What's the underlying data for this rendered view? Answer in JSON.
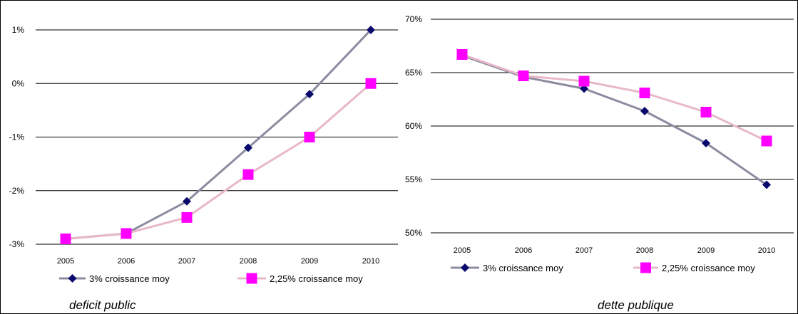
{
  "charts": [
    {
      "type": "line",
      "title": "",
      "caption": "deficit public",
      "categories": [
        "2005",
        "2006",
        "2007",
        "2008",
        "2009",
        "2010"
      ],
      "yticks": [
        "-3%",
        "-2%",
        "-1%",
        "0%",
        "1%"
      ],
      "ylim": [
        -3,
        1.5
      ],
      "series": [
        {
          "name": "3% croissance moy",
          "values": [
            -2.9,
            -2.8,
            -2.2,
            -1.2,
            -0.2,
            1.0
          ],
          "color": "#8c8ca0",
          "marker": "diamond",
          "marker_color": "#0a0a6e"
        },
        {
          "name": "2,25% croissance moy",
          "values": [
            -2.9,
            -2.8,
            -2.5,
            -1.7,
            -1.0,
            0.0
          ],
          "color": "#e8b8c8",
          "marker": "square",
          "marker_color": "#ff00ff"
        }
      ]
    },
    {
      "type": "line",
      "title": "",
      "caption": "dette publique",
      "categories": [
        "2005",
        "2006",
        "2007",
        "2008",
        "2009",
        "2010"
      ],
      "yticks": [
        "50%",
        "55%",
        "60%",
        "65%",
        "70%"
      ],
      "ylim": [
        50,
        70
      ],
      "series": [
        {
          "name": "3% croissance moy",
          "values": [
            66.6,
            64.6,
            63.5,
            61.4,
            58.4,
            54.5
          ],
          "color": "#8c8ca0",
          "marker": "diamond",
          "marker_color": "#0a0a6e"
        },
        {
          "name": "2,25% croissance moy",
          "values": [
            66.7,
            64.7,
            64.2,
            63.1,
            61.3,
            58.6
          ],
          "color": "#e8b8c8",
          "marker": "square",
          "marker_color": "#ff00ff"
        }
      ]
    }
  ]
}
